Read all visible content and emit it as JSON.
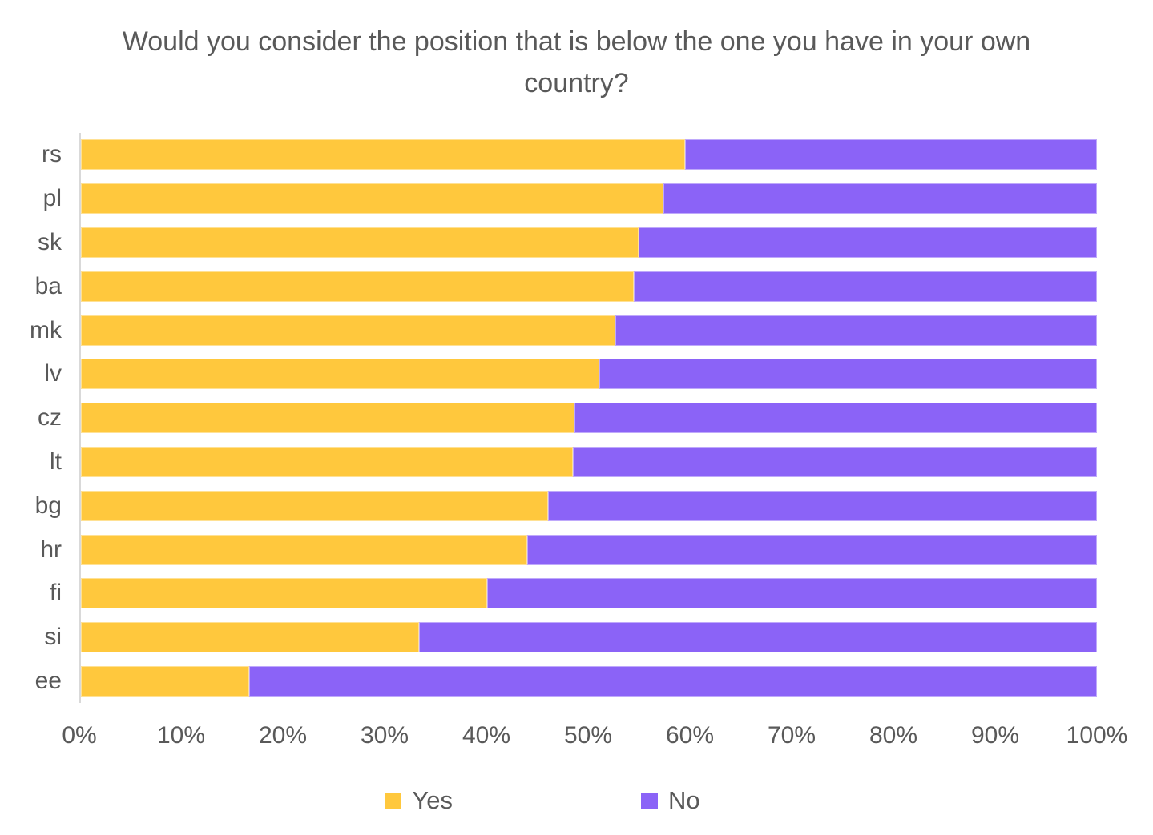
{
  "chart_data": {
    "type": "bar",
    "orientation": "horizontal",
    "stacked": true,
    "title": "Would you consider the position that is below the one you have in your own country?",
    "categories": [
      "rs",
      "pl",
      "sk",
      "ba",
      "mk",
      "lv",
      "cz",
      "lt",
      "bg",
      "hr",
      "fi",
      "si",
      "ee"
    ],
    "series": [
      {
        "name": "Yes",
        "color": "#FFC83D",
        "values": [
          59.5,
          57.3,
          54.9,
          54.4,
          52.6,
          51.0,
          48.6,
          48.4,
          46.0,
          43.9,
          40.0,
          33.3,
          16.6
        ]
      },
      {
        "name": "No",
        "color": "#8B63F7",
        "values": [
          40.5,
          42.7,
          45.1,
          45.6,
          47.4,
          49.0,
          51.4,
          51.6,
          54.0,
          56.1,
          60.0,
          66.7,
          83.4
        ]
      }
    ],
    "x_axis": {
      "min": 0,
      "max": 100,
      "ticks": [
        "0%",
        "10%",
        "20%",
        "30%",
        "40%",
        "50%",
        "60%",
        "70%",
        "80%",
        "90%",
        "100%"
      ]
    },
    "legend": {
      "position": "bottom",
      "entries": [
        {
          "label": "Yes",
          "color": "#FFC83D"
        },
        {
          "label": "No",
          "color": "#8B63F7"
        }
      ]
    },
    "grid": false
  },
  "colors": {
    "background": "#FFFFFF",
    "title_text": "#595959",
    "axis_text": "#595959",
    "axis_line": "#D9D9D9"
  }
}
